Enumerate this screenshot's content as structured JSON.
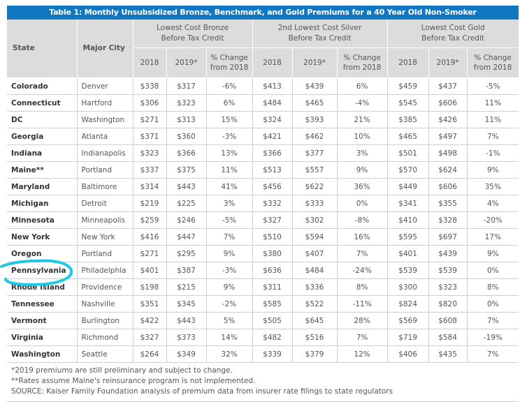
{
  "title": "Table 1: Monthly Unsubsidized Bronze, Benchmark, and Gold Premiums for a 40 Year Old Non-Smoker",
  "headers": {
    "state": "State",
    "city": "Major City",
    "groups": [
      "Lowest Cost Bronze Before Tax Credit",
      "2nd Lowest Cost Silver Before Tax Credit",
      "Lowest Cost Gold Before Tax Credit"
    ],
    "sub": [
      "2018",
      "2019*",
      "% Change from 2018"
    ]
  },
  "rows": [
    [
      "Colorado",
      "Denver",
      "$338",
      "$317",
      "-6%",
      "$413",
      "$439",
      "6%",
      "$459",
      "$437",
      "-5%"
    ],
    [
      "Connecticut",
      "Hartford",
      "$306",
      "$323",
      "6%",
      "$484",
      "$465",
      "-4%",
      "$545",
      "$606",
      "11%"
    ],
    [
      "DC",
      "Washington",
      "$271",
      "$313",
      "15%",
      "$324",
      "$393",
      "21%",
      "$385",
      "$426",
      "11%"
    ],
    [
      "Georgia",
      "Atlanta",
      "$371",
      "$360",
      "-3%",
      "$421",
      "$462",
      "10%",
      "$465",
      "$497",
      "7%"
    ],
    [
      "Indiana",
      "Indianapolis",
      "$323",
      "$366",
      "13%",
      "$366",
      "$377",
      "3%",
      "$501",
      "$498",
      "-1%"
    ],
    [
      "Maine**",
      "Portland",
      "$337",
      "$375",
      "11%",
      "$513",
      "$557",
      "9%",
      "$570",
      "$624",
      "9%"
    ],
    [
      "Maryland",
      "Baltimore",
      "$314",
      "$443",
      "41%",
      "$456",
      "$622",
      "36%",
      "$449",
      "$606",
      "35%"
    ],
    [
      "Michigan",
      "Detroit",
      "$219",
      "$225",
      "3%",
      "$332",
      "$333",
      "0%",
      "$341",
      "$355",
      "4%"
    ],
    [
      "Minnesota",
      "Minneapolis",
      "$259",
      "$246",
      "-5%",
      "$327",
      "$302",
      "-8%",
      "$410",
      "$328",
      "-20%"
    ],
    [
      "New York",
      "New York",
      "$416",
      "$447",
      "7%",
      "$510",
      "$594",
      "16%",
      "$595",
      "$697",
      "17%"
    ],
    [
      "Oregon",
      "Portland",
      "$271",
      "$295",
      "9%",
      "$380",
      "$407",
      "7%",
      "$401",
      "$439",
      "9%"
    ],
    [
      "Pennsylvania",
      "Philadelphia",
      "$401",
      "$387",
      "-3%",
      "$636",
      "$484",
      "-24%",
      "$539",
      "$539",
      "0%"
    ],
    [
      "Rhode Island",
      "Providence",
      "$198",
      "$215",
      "9%",
      "$311",
      "$336",
      "8%",
      "$300",
      "$323",
      "8%"
    ],
    [
      "Tennessee",
      "Nashville",
      "$351",
      "$345",
      "-2%",
      "$585",
      "$522",
      "-11%",
      "$824",
      "$820",
      "0%"
    ],
    [
      "Vermont",
      "Burlington",
      "$422",
      "$443",
      "5%",
      "$505",
      "$645",
      "28%",
      "$569",
      "$608",
      "7%"
    ],
    [
      "Virginia",
      "Richmond",
      "$327",
      "$373",
      "14%",
      "$482",
      "$516",
      "7%",
      "$719",
      "$584",
      "-19%"
    ],
    [
      "Washington",
      "Seattle",
      "$264",
      "$349",
      "32%",
      "$339",
      "$379",
      "12%",
      "$406",
      "$435",
      "7%"
    ]
  ],
  "notes": [
    "*2019 premiums are still preliminary and subject to change.",
    "**Rates assume Maine's reinsurance program is not implemented.",
    "SOURCE: Kaiser Family Foundation analysis of premium data from insurer rate filings to state regulators"
  ],
  "colors": {
    "title_bar": "#1177c0",
    "header_bg": "#dcdcdc",
    "annotation": "#1ec8e8"
  },
  "annotation": {
    "type": "hand-drawn circle",
    "target": "Pennsylvania"
  }
}
